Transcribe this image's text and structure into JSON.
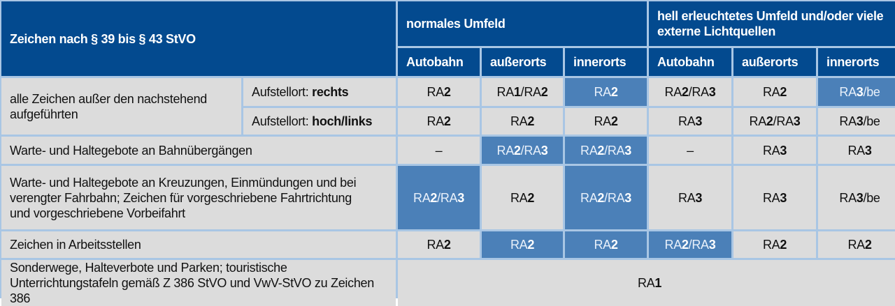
{
  "header": {
    "title": "Zeichen nach § 39 bis § 43 StVO",
    "group1": "normales Umfeld",
    "group2": "hell erleuchtetes Umfeld und/oder viele externe Lichtquellen",
    "columns": [
      "Autobahn",
      "außerorts",
      "innerorts",
      "Autobahn",
      "außerorts",
      "innerorts"
    ]
  },
  "rows": [
    {
      "label": "alle Zeichen außer den nachstehend aufgeführten",
      "sub": [
        {
          "prefix": "Aufstellort: ",
          "bold": "rechts",
          "values": [
            "RA2",
            "RA1/RA2",
            "RA2",
            "RA2/RA3",
            "RA2",
            "RA3/be"
          ],
          "highlight": [
            false,
            false,
            true,
            false,
            false,
            true
          ]
        },
        {
          "prefix": "Aufstellort: ",
          "bold": "hoch/links",
          "values": [
            "RA2",
            "RA2",
            "RA2",
            "RA3",
            "RA2/RA3",
            "RA3/be"
          ],
          "highlight": [
            false,
            false,
            false,
            false,
            false,
            false
          ]
        }
      ]
    },
    {
      "label": "Warte- und Haltegebote an Bahnübergängen",
      "values": [
        "–",
        "RA2/RA3",
        "RA2/RA3",
        "–",
        "RA3",
        "RA3"
      ],
      "highlight": [
        false,
        true,
        true,
        false,
        false,
        false
      ]
    },
    {
      "label": "Warte- und Haltegebote an Kreuzungen, Einmündungen und bei verengter Fahrbahn; Zeichen für vorgeschriebene Fahrtrichtung und vorgeschriebene Vorbeifahrt",
      "values": [
        "RA2/RA3",
        "RA2",
        "RA2/RA3",
        "RA3",
        "RA3",
        "RA3/be"
      ],
      "highlight": [
        true,
        false,
        true,
        false,
        false,
        false
      ]
    },
    {
      "label": "Zeichen in Arbeitsstellen",
      "values": [
        "RA2",
        "RA2",
        "RA2",
        "RA2/RA3",
        "RA2",
        "RA2"
      ],
      "highlight": [
        false,
        true,
        true,
        true,
        false,
        false
      ]
    },
    {
      "label": "Sonderwege, Halteverbote und Parken; touristische Unterrichtungstafeln gemäß Z 386 StVO und VwV-StVO zu Zeichen 386",
      "value_all": "RA1"
    }
  ],
  "colors": {
    "header": "#034a8f",
    "cell": "#dcdcdc",
    "highlight": "#4b80b8",
    "border": "#a9c6e4"
  }
}
